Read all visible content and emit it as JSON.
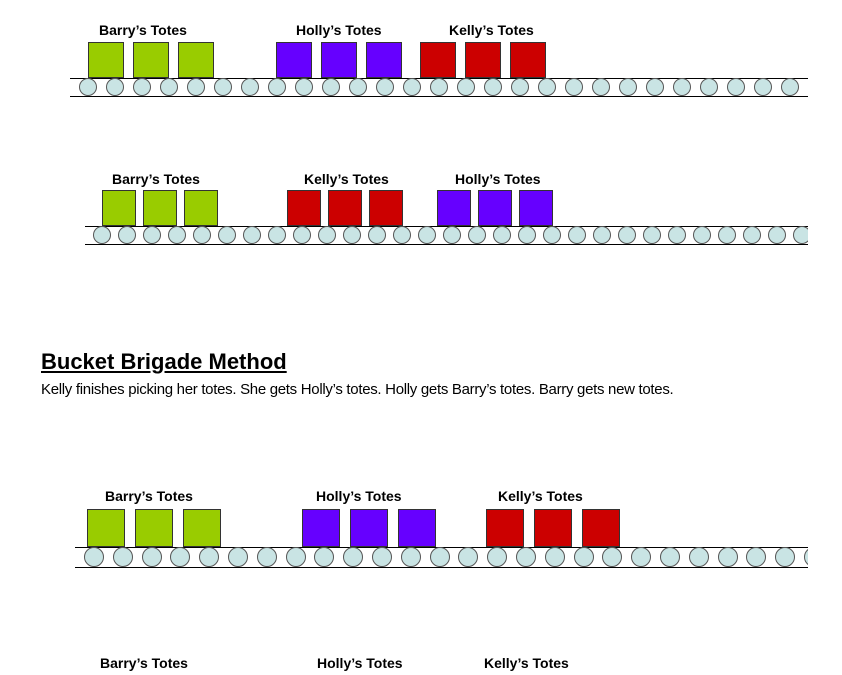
{
  "colors": {
    "green": "#99cc00",
    "purple": "#6600ff",
    "red": "#cc0000",
    "roller": "#c9e4e4"
  },
  "conveyors": [
    {
      "groups": [
        {
          "label": "Barry’s Totes",
          "color": "green",
          "count": 3
        },
        {
          "label": "Holly’s Totes",
          "color": "purple",
          "count": 3
        },
        {
          "label": "Kelly’s Totes",
          "color": "red",
          "count": 3
        }
      ]
    },
    {
      "groups": [
        {
          "label": "Barry’s Totes",
          "color": "green",
          "count": 3
        },
        {
          "label": "Kelly’s Totes",
          "color": "red",
          "count": 3
        },
        {
          "label": "Holly’s Totes",
          "color": "purple",
          "count": 3
        }
      ]
    },
    {
      "groups": [
        {
          "label": "Barry’s Totes",
          "color": "green",
          "count": 3
        },
        {
          "label": "Holly’s Totes",
          "color": "purple",
          "count": 3
        },
        {
          "label": "Kelly’s Totes",
          "color": "red",
          "count": 3
        }
      ]
    },
    {
      "groups": [
        {
          "label": "Barry’s Totes"
        },
        {
          "label": "Holly’s Totes"
        },
        {
          "label": "Kelly’s Totes"
        }
      ]
    }
  ],
  "section": {
    "title": "Bucket Brigade Method",
    "description": "Kelly finishes picking her totes. She gets Holly’s totes.  Holly gets Barry’s totes. Barry gets new totes."
  }
}
